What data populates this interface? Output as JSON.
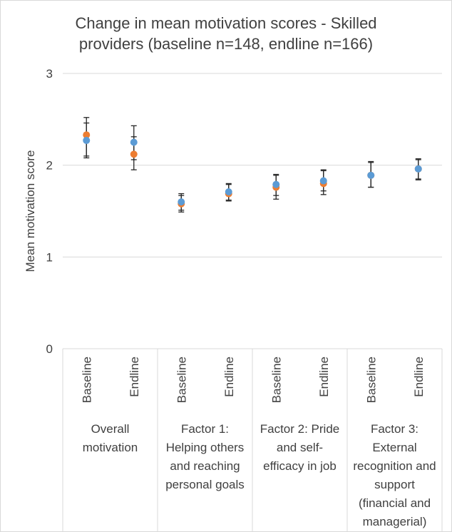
{
  "chart_data": {
    "type": "scatter",
    "title_lines": [
      "Change in mean motivation scores - Skilled",
      "providers (baseline n=148, endline n=166)"
    ],
    "ylabel": "Mean motivation score",
    "ylim": [
      0,
      3
    ],
    "yticks": [
      "0",
      "1",
      "2",
      "3"
    ],
    "grid": true,
    "categories": [
      "Baseline",
      "Endline",
      "Baseline",
      "Endline",
      "Baseline",
      "Endline",
      "Baseline",
      "Endline"
    ],
    "groups": [
      {
        "lines": [
          "Overall",
          "motivation"
        ]
      },
      {
        "lines": [
          "Factor 1:",
          "Helping others",
          "and reaching",
          "personal goals"
        ]
      },
      {
        "lines": [
          "Factor 2: Pride",
          "and self-",
          "efficacy in job"
        ]
      },
      {
        "lines": [
          "Factor 3:",
          "External",
          "recognition and",
          "support",
          "(financial and",
          "managerial)"
        ]
      }
    ],
    "series": [
      {
        "color": "#5b9bd5",
        "values": [
          2.27,
          2.25,
          1.6,
          1.71,
          1.79,
          1.83,
          1.89,
          1.96
        ],
        "err_low": [
          2.1,
          2.06,
          1.51,
          1.62,
          1.67,
          1.72,
          1.76,
          1.85
        ],
        "err_high": [
          2.46,
          2.43,
          1.69,
          1.8,
          1.9,
          1.95,
          2.04,
          2.07
        ]
      },
      {
        "color": "#ed7d31",
        "values": [
          2.33,
          2.12,
          1.58,
          1.69,
          1.76,
          1.8,
          1.89,
          1.96
        ],
        "err_low": [
          2.08,
          1.95,
          1.49,
          1.61,
          1.63,
          1.68,
          1.76,
          1.84
        ],
        "err_high": [
          2.52,
          2.31,
          1.67,
          1.79,
          1.89,
          1.94,
          2.03,
          2.06
        ]
      }
    ]
  }
}
